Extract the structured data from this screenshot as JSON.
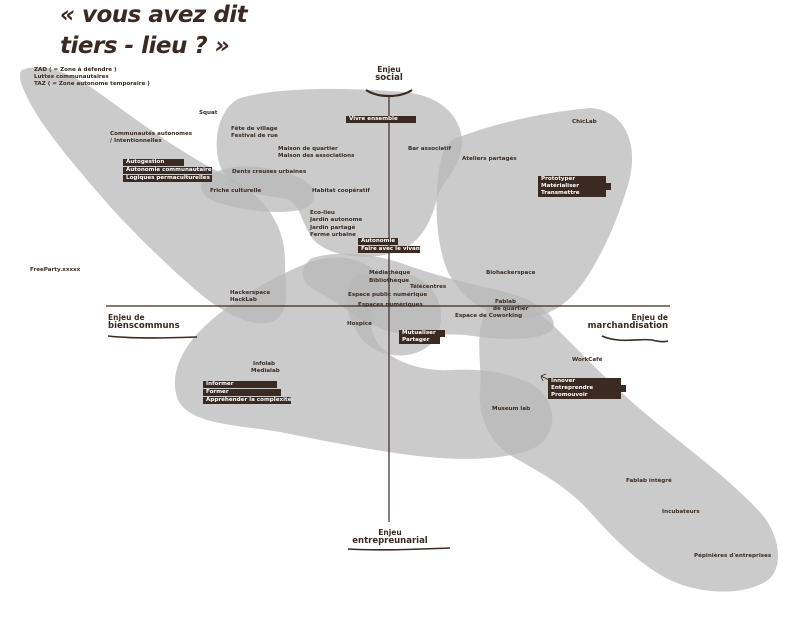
{
  "title": {
    "line1": "« vous avez dit",
    "line2": "tiers - lieu ? »"
  },
  "axes": {
    "top": {
      "line1": "Enjeu",
      "line2": "social"
    },
    "bottom": {
      "line1": "Enjeu",
      "line2": "entrepreunarial"
    },
    "left": {
      "line1": "Enjeu de",
      "line2": "bienscommuns"
    },
    "right": {
      "line1": "Enjeu de",
      "line2": "marchandisation"
    }
  },
  "labels": {
    "zad": "ZAD ( = Zone à défendre )",
    "luttes": "Luttes communautaires",
    "taz": "TAZ ( = Zone autonome temporaire )",
    "squat": "Squat",
    "communautes": "Communautés autonomes",
    "intentionnelles": "/ Intentionnelles",
    "fete_village": "Fête de village",
    "festival_rue": "Festival de rue",
    "maison_quartier": "Maison de quartier",
    "maison_assoc": "Maison des associations",
    "bar_associatif": "Bar associatif",
    "ateliers_partages": "Ateliers partagés",
    "chiclab": "ChicLab",
    "jardins_urbains": "Dents creuses urbaines",
    "friche": "Friche culturelle",
    "habitat": "Habitat coopératif",
    "ecolieu": "Eco-lieu",
    "jardin_autonome": "Jardin autonome",
    "jardin_partage": "Jardin partagé",
    "ferme_urbaine": "Ferme urbaine",
    "freeparty": "FreeParty.xxxxx",
    "hackerspace": "Hackerspace",
    "hacklab": "HackLab",
    "mediatheque": "Médiathèque",
    "bibliotheque": "Bibliothèque",
    "telecentres": "Télécentres",
    "espace_public_num": "Espace public numérique",
    "espaces_num": "Espaces numériques",
    "biohackerspace": "Biohackerspace",
    "fablab_quartier_1": "Fablab",
    "fablab_quartier_2": "de quartier",
    "espace_coworking": "Espace de Coworking",
    "hospice": "Hospice",
    "infolab": "Infolab",
    "medialab": "Medialab",
    "workcafe": "WorkCafé",
    "museumlab": "Museum lab",
    "fablab_integre": "Fablab intégré",
    "incubateurs": "Incubateurs",
    "pepinieres": "Pépinières d'entreprises"
  },
  "tags": {
    "vivre_ensemble": "Vivre ensemble",
    "autogestion": "Autogestion",
    "autonomie_communautaire": "Autonomie communautaire",
    "logiques_permaculturelles": "Logiques permaculturelles",
    "prototyper": "Prototyper",
    "materialiser": "Matérialiser",
    "transmettre": "Transmettre",
    "autonomie": "Autonomie",
    "faire_avec_vivant": "Faire avec le vivant",
    "mutualiser": "Mutualiser",
    "partager": "Partager",
    "informer": "Informer",
    "former": "Former",
    "apprehender": "Appréhender la complexité",
    "innover": "Innover",
    "entreprendre": "Entreprendre",
    "promouvoir": "Promouvoir"
  },
  "colors": {
    "blob": "#b9b7b8",
    "text": "#3a2a22",
    "tag_bg": "#3a2a22",
    "tag_text": "#ffffff",
    "background": "#ffffff"
  }
}
